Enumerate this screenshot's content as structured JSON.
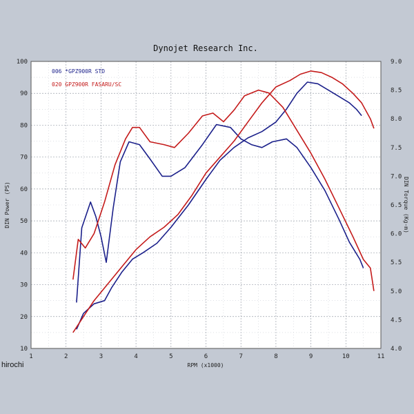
{
  "chart_data": {
    "type": "line",
    "title": "Dynojet  Research  Inc.",
    "xlabel": "RPM (x1000)",
    "ylabel_left": "DIN Power (PS)",
    "ylabel_right": "DIN Torque (Kg-m)",
    "xlim": [
      1,
      11
    ],
    "ylim_left": [
      10,
      100
    ],
    "ylim_right": [
      4.0,
      9.0
    ],
    "x_ticks": [
      "1",
      "2",
      "3",
      "4",
      "5",
      "6",
      "7",
      "8",
      "9",
      "10",
      "11"
    ],
    "y_left_ticks": [
      "10",
      "20",
      "30",
      "40",
      "50",
      "60",
      "70",
      "80",
      "90",
      "100"
    ],
    "y_right_ticks": [
      "4.0",
      "4.5",
      "5.0",
      "5.5",
      "6.0",
      "6.5",
      "7.0",
      "7.5",
      "8.0",
      "8.5",
      "9.0"
    ],
    "grid": true,
    "legend_position": "top-left",
    "series": [
      {
        "name": "006  *GPZ900R STD",
        "color": "#1a1f8a",
        "power": [
          [
            2.3,
            16
          ],
          [
            2.5,
            21
          ],
          [
            2.8,
            24
          ],
          [
            3.1,
            25
          ],
          [
            3.3,
            29
          ],
          [
            3.6,
            34
          ],
          [
            3.9,
            38
          ],
          [
            4.2,
            40
          ],
          [
            4.6,
            43
          ],
          [
            5.0,
            48
          ],
          [
            5.5,
            55
          ],
          [
            6.0,
            63
          ],
          [
            6.4,
            69
          ],
          [
            6.8,
            73
          ],
          [
            7.2,
            76
          ],
          [
            7.6,
            78
          ],
          [
            8.0,
            81
          ],
          [
            8.3,
            85
          ],
          [
            8.6,
            90
          ],
          [
            8.9,
            93.5
          ],
          [
            9.2,
            93
          ],
          [
            9.5,
            91
          ],
          [
            9.8,
            89
          ],
          [
            10.1,
            87
          ],
          [
            10.3,
            85
          ],
          [
            10.45,
            83
          ]
        ],
        "torque": [
          [
            2.3,
            4.8
          ],
          [
            2.45,
            6.1
          ],
          [
            2.7,
            6.55
          ],
          [
            2.85,
            6.3
          ],
          [
            3.0,
            5.95
          ],
          [
            3.15,
            5.5
          ],
          [
            3.35,
            6.45
          ],
          [
            3.55,
            7.25
          ],
          [
            3.8,
            7.6
          ],
          [
            4.1,
            7.55
          ],
          [
            4.4,
            7.3
          ],
          [
            4.75,
            7.0
          ],
          [
            5.0,
            7.0
          ],
          [
            5.4,
            7.15
          ],
          [
            5.9,
            7.55
          ],
          [
            6.3,
            7.9
          ],
          [
            6.7,
            7.85
          ],
          [
            7.0,
            7.65
          ],
          [
            7.3,
            7.55
          ],
          [
            7.6,
            7.5
          ],
          [
            7.9,
            7.6
          ],
          [
            8.3,
            7.65
          ],
          [
            8.6,
            7.5
          ],
          [
            9.0,
            7.15
          ],
          [
            9.4,
            6.75
          ],
          [
            9.8,
            6.25
          ],
          [
            10.1,
            5.85
          ],
          [
            10.4,
            5.55
          ],
          [
            10.5,
            5.4
          ]
        ]
      },
      {
        "name": "020  GPZ900R FASARU/SC",
        "color": "#c41a1a",
        "power": [
          [
            2.2,
            15
          ],
          [
            2.5,
            20
          ],
          [
            2.8,
            25
          ],
          [
            3.1,
            29
          ],
          [
            3.4,
            33
          ],
          [
            3.7,
            37
          ],
          [
            4.0,
            41
          ],
          [
            4.4,
            45
          ],
          [
            4.8,
            48
          ],
          [
            5.2,
            52
          ],
          [
            5.6,
            58
          ],
          [
            6.0,
            65
          ],
          [
            6.4,
            70
          ],
          [
            6.8,
            75
          ],
          [
            7.2,
            81
          ],
          [
            7.6,
            87
          ],
          [
            8.0,
            92
          ],
          [
            8.4,
            94
          ],
          [
            8.7,
            96
          ],
          [
            9.0,
            97
          ],
          [
            9.3,
            96.5
          ],
          [
            9.6,
            95
          ],
          [
            9.9,
            93
          ],
          [
            10.2,
            90
          ],
          [
            10.45,
            87
          ],
          [
            10.7,
            82
          ],
          [
            10.8,
            79
          ]
        ],
        "torque": [
          [
            2.2,
            5.2
          ],
          [
            2.35,
            5.9
          ],
          [
            2.55,
            5.75
          ],
          [
            2.8,
            6.0
          ],
          [
            3.1,
            6.55
          ],
          [
            3.4,
            7.2
          ],
          [
            3.7,
            7.65
          ],
          [
            3.9,
            7.85
          ],
          [
            4.1,
            7.85
          ],
          [
            4.4,
            7.6
          ],
          [
            4.8,
            7.55
          ],
          [
            5.1,
            7.5
          ],
          [
            5.5,
            7.75
          ],
          [
            5.9,
            8.05
          ],
          [
            6.2,
            8.1
          ],
          [
            6.5,
            7.95
          ],
          [
            6.8,
            8.15
          ],
          [
            7.1,
            8.4
          ],
          [
            7.5,
            8.5
          ],
          [
            7.8,
            8.45
          ],
          [
            8.2,
            8.2
          ],
          [
            8.6,
            7.8
          ],
          [
            9.0,
            7.4
          ],
          [
            9.4,
            6.95
          ],
          [
            9.8,
            6.45
          ],
          [
            10.2,
            5.95
          ],
          [
            10.5,
            5.55
          ],
          [
            10.7,
            5.4
          ],
          [
            10.8,
            5.0
          ]
        ]
      }
    ]
  },
  "watermark": "hirochi"
}
